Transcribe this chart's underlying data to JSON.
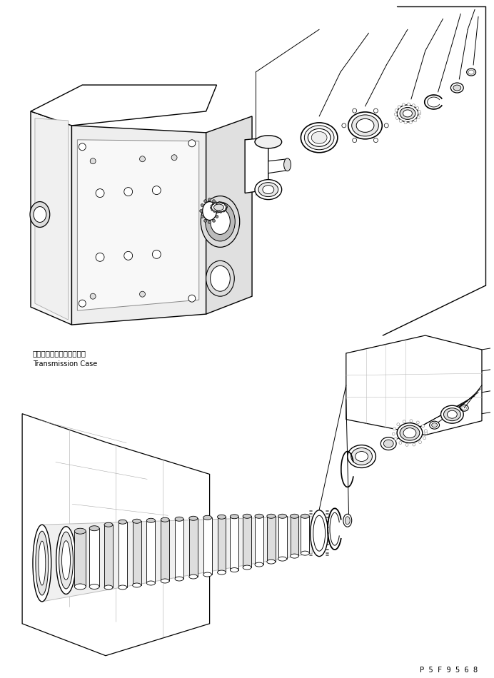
{
  "bg_color": "#ffffff",
  "line_color": "#000000",
  "fig_width": 6.92,
  "fig_height": 9.5,
  "dpi": 100,
  "label_japanese": "トランスミッションケース",
  "label_english": "Transmission Case",
  "part_number": "P 5 F 9 5 6 8"
}
